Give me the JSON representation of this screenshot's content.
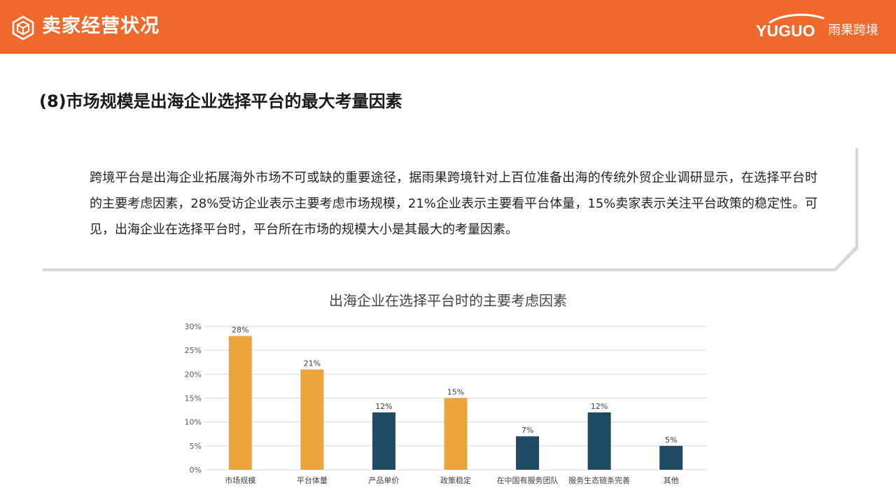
{
  "header": {
    "title": "卖家经营状况",
    "brand_en": "YUGUO",
    "brand_cn": "雨果跨境",
    "color": "#f0692c"
  },
  "section_title": "(8)市场规模是出海企业选择平台的最大考量因素",
  "card": {
    "text": "跨境平台是出海企业拓展海外市场不可或缺的重要途径，据雨果跨境针对上百位准备出海的传统外贸企业调研显示，在选择平台时的主要考虑因素，28%受访企业表示主要考虑市场规模，21%企业表示主要看平台体量，15%卖家表示关注平台政策的稳定性。可见，出海企业在选择平台时，平台所在市场的规模大小是其最大的考量因素。"
  },
  "chart_data": {
    "type": "bar",
    "title": "出海企业在选择平台时的主要考虑因素",
    "categories": [
      "市场规模",
      "平台体量",
      "产品单价",
      "政策稳定",
      "在中国有服务团队",
      "服务生态链条完善",
      "其他"
    ],
    "values": [
      28,
      21,
      12,
      15,
      7,
      12,
      5
    ],
    "value_labels": [
      "28%",
      "21%",
      "12%",
      "15%",
      "7%",
      "12%",
      "5%"
    ],
    "bar_colors": [
      "#eba53a",
      "#eba53a",
      "#1e4a63",
      "#eba53a",
      "#1e4a63",
      "#1e4a63",
      "#1e4a63"
    ],
    "ylim": [
      0,
      30
    ],
    "yticks": [
      "0%",
      "5%",
      "10%",
      "15%",
      "20%",
      "25%",
      "30%"
    ],
    "grid": true,
    "xlabel": "",
    "ylabel": ""
  }
}
